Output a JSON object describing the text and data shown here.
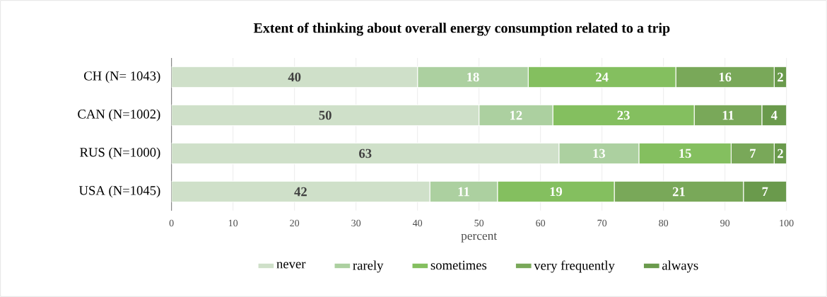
{
  "chart_data": {
    "type": "bar",
    "orientation": "horizontal",
    "stacked": true,
    "title": "Extent of thinking about overall energy consumption related to a trip",
    "xlabel": "percent",
    "categories": [
      "CH (N= 1043)",
      "CAN (N=1002)",
      "RUS (N=1000)",
      "USA (N=1045)"
    ],
    "series": [
      {
        "name": "never",
        "color": "#cfe0c9",
        "values": [
          40,
          50,
          63,
          42
        ]
      },
      {
        "name": "rarely",
        "color": "#acd0a0",
        "values": [
          18,
          12,
          13,
          11
        ]
      },
      {
        "name": "sometimes",
        "color": "#84bf5f",
        "values": [
          24,
          23,
          15,
          19
        ]
      },
      {
        "name": "very frequently",
        "color": "#79a859",
        "values": [
          16,
          11,
          7,
          21
        ]
      },
      {
        "name": "always",
        "color": "#6a9a4c",
        "values": [
          2,
          4,
          2,
          7
        ]
      }
    ],
    "xlim": [
      0,
      100
    ],
    "xticks": [
      0,
      10,
      20,
      30,
      40,
      50,
      60,
      70,
      80,
      90,
      100
    ],
    "grid": "x",
    "legend": "bottom",
    "data_labels": true
  }
}
